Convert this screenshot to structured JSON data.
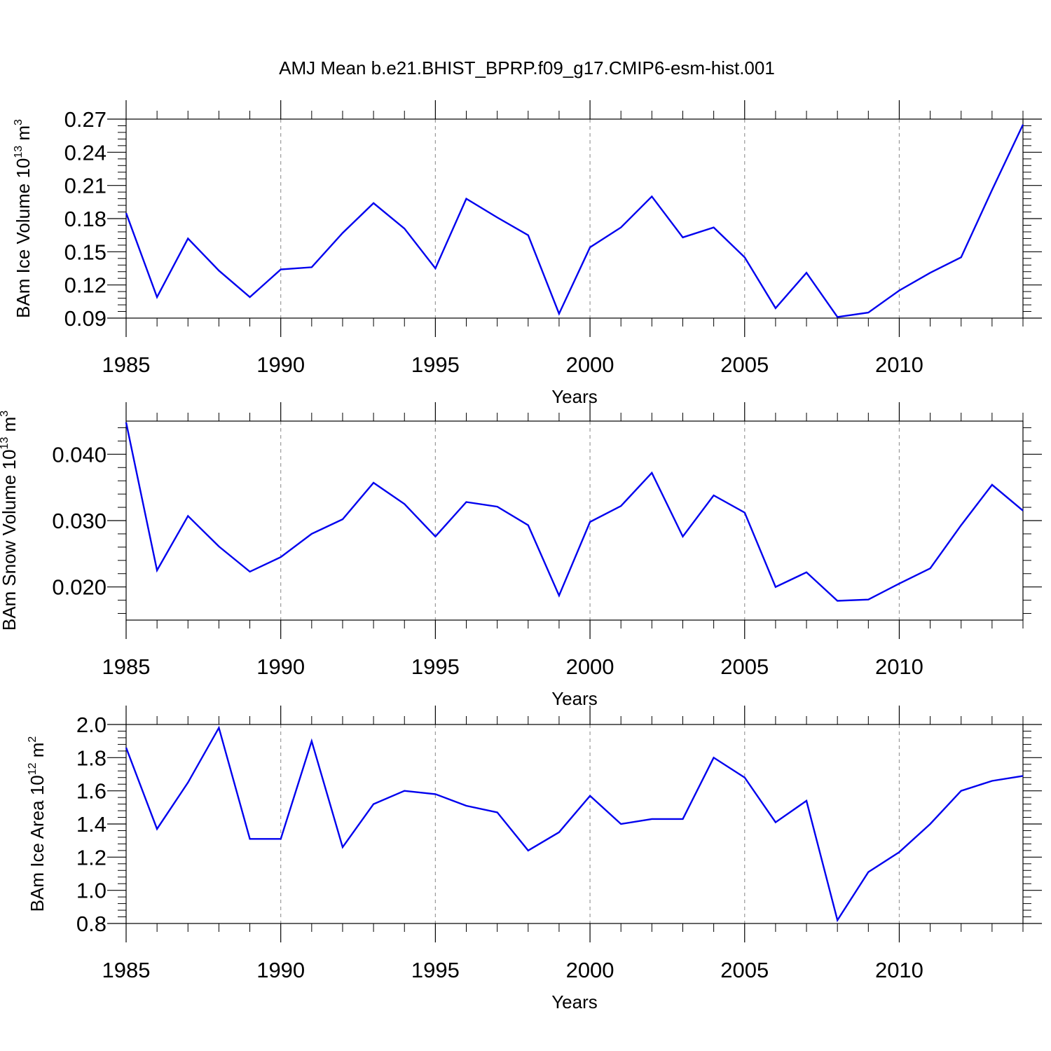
{
  "title": "AMJ Mean b.e21.BHIST_BPRP.f09_g17.CMIP6-esm-hist.001",
  "colors": {
    "line": "#0000ee",
    "axis": "#000000",
    "grid": "#999999"
  },
  "chart_data": [
    {
      "type": "line",
      "ylabel": "BAm Ice Volume 10",
      "ylabel_exp": "13",
      "ylabel_unit": " m",
      "ylabel_unit_exp": "3",
      "xlabel": "Years",
      "xlim": [
        1985,
        2014
      ],
      "ylim": [
        0.09,
        0.27
      ],
      "xticks": [
        1985,
        1990,
        1995,
        2000,
        2005,
        2010
      ],
      "xtick_labels": [
        "1985",
        "1990",
        "1995",
        "2000",
        "2005",
        "2010"
      ],
      "yticks": [
        0.09,
        0.12,
        0.15,
        0.18,
        0.21,
        0.24,
        0.27
      ],
      "ytick_labels": [
        "0.09",
        "0.12",
        "0.15",
        "0.18",
        "0.21",
        "0.24",
        "0.27"
      ],
      "series": [
        {
          "name": "BAm Ice Volume",
          "x": [
            1985,
            1986,
            1987,
            1988,
            1989,
            1990,
            1991,
            1992,
            1993,
            1994,
            1995,
            1996,
            1997,
            1998,
            1999,
            2000,
            2001,
            2002,
            2003,
            2004,
            2005,
            2006,
            2007,
            2008,
            2009,
            2010,
            2011,
            2012,
            2013,
            2014
          ],
          "y": [
            0.185,
            0.109,
            0.162,
            0.133,
            0.109,
            0.134,
            0.136,
            0.167,
            0.194,
            0.171,
            0.135,
            0.198,
            0.181,
            0.165,
            0.094,
            0.154,
            0.172,
            0.2,
            0.163,
            0.172,
            0.145,
            0.099,
            0.131,
            0.091,
            0.095,
            0.115,
            0.131,
            0.145,
            0.206,
            0.265
          ]
        }
      ]
    },
    {
      "type": "line",
      "ylabel": "BAm Snow Volume 10",
      "ylabel_exp": "13",
      "ylabel_unit": " m",
      "ylabel_unit_exp": "3",
      "xlabel": "Years",
      "xlim": [
        1985,
        2014
      ],
      "ylim": [
        0.015,
        0.045
      ],
      "xticks": [
        1985,
        1990,
        1995,
        2000,
        2005,
        2010
      ],
      "xtick_labels": [
        "1985",
        "1990",
        "1995",
        "2000",
        "2005",
        "2010"
      ],
      "yticks": [
        0.02,
        0.03,
        0.04
      ],
      "ytick_labels": [
        "0.020",
        "0.030",
        "0.040"
      ],
      "series": [
        {
          "name": "BAm Snow Volume",
          "x": [
            1985,
            1986,
            1987,
            1988,
            1989,
            1990,
            1991,
            1992,
            1993,
            1994,
            1995,
            1996,
            1997,
            1998,
            1999,
            2000,
            2001,
            2002,
            2003,
            2004,
            2005,
            2006,
            2007,
            2008,
            2009,
            2010,
            2011,
            2012,
            2013,
            2014
          ],
          "y": [
            0.0448,
            0.0225,
            0.0307,
            0.0261,
            0.0223,
            0.0245,
            0.028,
            0.0302,
            0.0357,
            0.0325,
            0.0276,
            0.0328,
            0.0321,
            0.0293,
            0.0187,
            0.0298,
            0.0322,
            0.0372,
            0.0276,
            0.0338,
            0.0312,
            0.02,
            0.0222,
            0.0179,
            0.0181,
            0.0205,
            0.0228,
            0.0293,
            0.0354,
            0.0315
          ]
        }
      ]
    },
    {
      "type": "line",
      "ylabel": "BAm Ice Area 10",
      "ylabel_exp": "12",
      "ylabel_unit": " m",
      "ylabel_unit_exp": "2",
      "xlabel": "Years",
      "xlim": [
        1985,
        2014
      ],
      "ylim": [
        0.8,
        2.0
      ],
      "xticks": [
        1985,
        1990,
        1995,
        2000,
        2005,
        2010
      ],
      "xtick_labels": [
        "1985",
        "1990",
        "1995",
        "2000",
        "2005",
        "2010"
      ],
      "yticks": [
        0.8,
        1.0,
        1.2,
        1.4,
        1.6,
        1.8,
        2.0
      ],
      "ytick_labels": [
        "0.8",
        "1.0",
        "1.2",
        "1.4",
        "1.6",
        "1.8",
        "2.0"
      ],
      "series": [
        {
          "name": "BAm Ice Area",
          "x": [
            1985,
            1986,
            1987,
            1988,
            1989,
            1990,
            1991,
            1992,
            1993,
            1994,
            1995,
            1996,
            1997,
            1998,
            1999,
            2000,
            2001,
            2002,
            2003,
            2004,
            2005,
            2006,
            2007,
            2008,
            2009,
            2010,
            2011,
            2012,
            2013,
            2014
          ],
          "y": [
            1.86,
            1.37,
            1.65,
            1.98,
            1.31,
            1.31,
            1.9,
            1.26,
            1.52,
            1.6,
            1.58,
            1.51,
            1.47,
            1.24,
            1.35,
            1.57,
            1.4,
            1.43,
            1.43,
            1.8,
            1.68,
            1.41,
            1.54,
            0.82,
            1.11,
            1.23,
            1.4,
            1.6,
            1.66,
            1.69
          ]
        }
      ]
    }
  ]
}
